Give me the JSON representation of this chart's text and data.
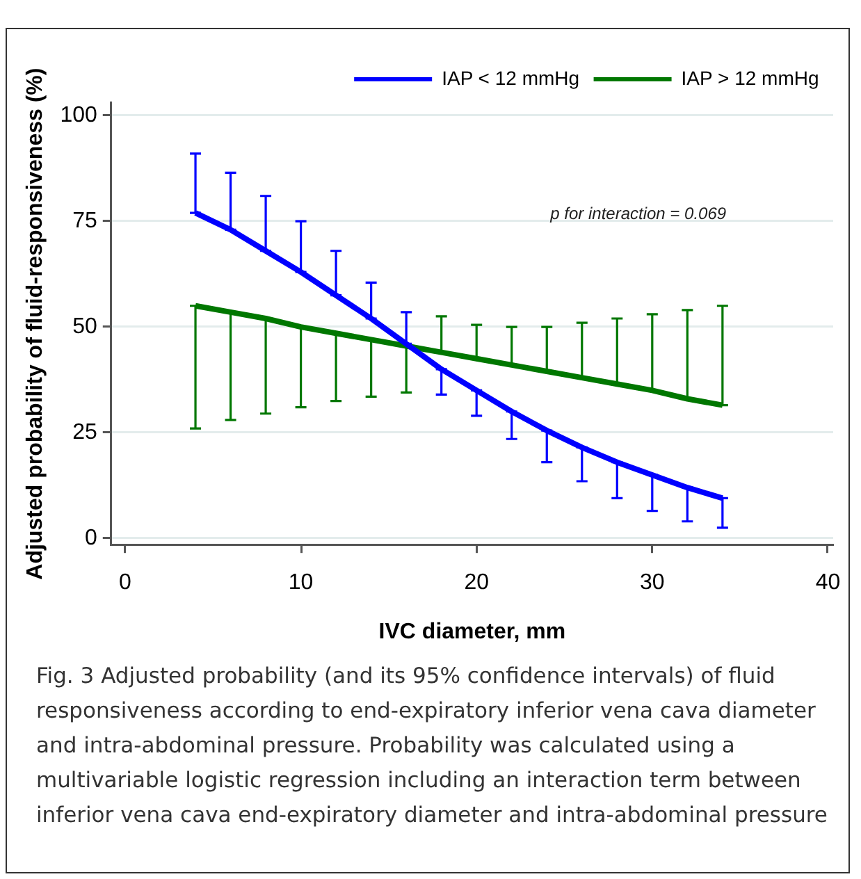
{
  "chart_data": {
    "type": "line",
    "xlabel": "IVC diameter, mm",
    "ylabel": "Adjusted probability of fluid-responsiveness (%)",
    "x": [
      4,
      6,
      8,
      10,
      12,
      14,
      16,
      18,
      20,
      22,
      24,
      26,
      28,
      30,
      32,
      34
    ],
    "series": [
      {
        "name": "IAP < 12 mmHg",
        "color": "#0000ff",
        "values": [
          77,
          73,
          68,
          63,
          57.5,
          52,
          46,
          40,
          35,
          30,
          25.5,
          21.5,
          18,
          15,
          12,
          9.5
        ],
        "errors": [
          [
            77,
            91
          ],
          [
            73,
            86.5
          ],
          [
            68,
            81
          ],
          [
            63,
            75
          ],
          [
            57.5,
            68
          ],
          [
            52,
            60.5
          ],
          [
            46,
            53.5
          ],
          [
            34,
            40
          ],
          [
            29,
            35
          ],
          [
            23.5,
            30
          ],
          [
            18,
            25.5
          ],
          [
            13.5,
            21.5
          ],
          [
            9.5,
            18
          ],
          [
            6.5,
            15
          ],
          [
            4,
            12
          ],
          [
            2.5,
            9.5
          ]
        ]
      },
      {
        "name": "IAP > 12 mmHg",
        "color": "#007700",
        "values": [
          55,
          53.5,
          52,
          50,
          48.5,
          47,
          45.5,
          44,
          42.5,
          41,
          39.5,
          38,
          36.5,
          35,
          33,
          31.5
        ],
        "errors": [
          [
            26,
            55
          ],
          [
            28,
            53.5
          ],
          [
            29.5,
            52
          ],
          [
            31,
            50
          ],
          [
            32.5,
            48.5
          ],
          [
            33.5,
            47
          ],
          [
            34.5,
            45.5
          ],
          [
            44,
            52.5
          ],
          [
            42.5,
            50.5
          ],
          [
            41,
            50
          ],
          [
            39.5,
            50
          ],
          [
            38,
            51
          ],
          [
            36.5,
            52
          ],
          [
            35,
            53
          ],
          [
            33,
            54
          ],
          [
            31.5,
            55
          ]
        ]
      }
    ],
    "xlim": [
      -0.8,
      40.3
    ],
    "xticks": [
      0,
      10,
      20,
      30,
      40
    ],
    "ylim": [
      -1.5,
      103
    ],
    "yticks": [
      0,
      25,
      50,
      75,
      100
    ],
    "grid": "y",
    "legend": "top right",
    "marker": "none",
    "line_style": "solid",
    "annotations": [
      "p for interaction = 0.069",
      "Fig. 3  Adjusted probability (and its 95% confidence intervals) of fluid responsiveness according to end-expiratory inferior vena cava diameter and intra-abdominal pressure. Probability was calculated using a multivariable logistic regression including an interaction term between inferior vena cava end-expiratory diameter and intra-abdominal pressure"
    ]
  }
}
